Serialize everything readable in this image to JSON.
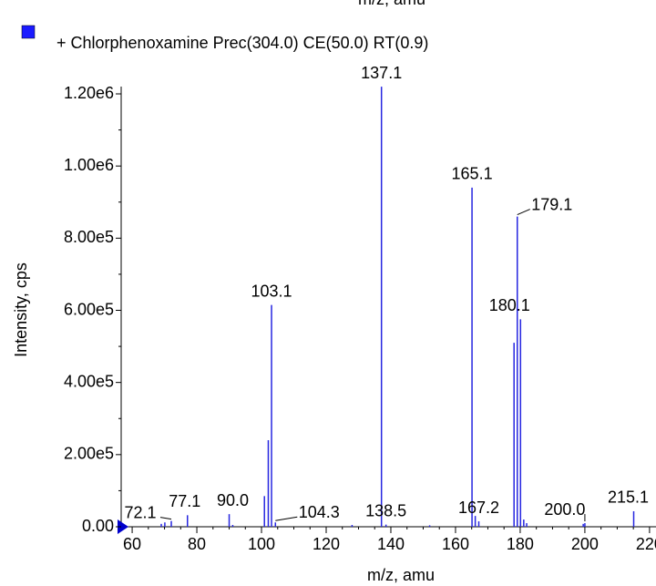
{
  "chart_data": {
    "type": "bar",
    "legend": "+ Chlorphenoxamine Prec(304.0) CE(50.0) RT(0.9)",
    "x_label": "m/z, amu",
    "y_label": "Intensity, cps",
    "color": "#2626e0",
    "x": [
      69.0,
      70.1,
      72.1,
      77.1,
      90.0,
      91.1,
      100.9,
      102.1,
      103.1,
      104.3,
      128.0,
      137.1,
      138.5,
      152.0,
      165.1,
      166.1,
      167.2,
      178.1,
      179.1,
      180.1,
      181.1,
      182.0,
      199.5,
      200.0,
      215.1
    ],
    "values": [
      8000,
      12000,
      16000,
      32000,
      35000,
      5000,
      85000,
      240000,
      615000,
      12000,
      5000,
      1220000,
      6000,
      4000,
      940000,
      30000,
      15000,
      510000,
      860000,
      575000,
      20000,
      10000,
      8000,
      10000,
      43000
    ],
    "peak_labels": [
      null,
      null,
      "72.1",
      "77.1",
      "90.0",
      null,
      null,
      null,
      "103.1",
      "104.3",
      null,
      "137.1",
      "138.5",
      null,
      "165.1",
      null,
      "167.2",
      null,
      "179.1",
      "180.1",
      null,
      null,
      null,
      "200.0",
      "215.1"
    ],
    "xlim": [
      56.6,
      222
    ],
    "xticks": [
      60,
      80,
      100,
      120,
      140,
      160,
      180,
      200,
      220
    ],
    "ylim": [
      0,
      1220000
    ],
    "yticks": [
      {
        "value": 0,
        "label": "0.00"
      },
      {
        "value": 200000,
        "label": "2.00e5"
      },
      {
        "value": 400000,
        "label": "4.00e5"
      },
      {
        "value": 600000,
        "label": "6.00e5"
      },
      {
        "value": 800000,
        "label": "8.00e5"
      },
      {
        "value": 1000000,
        "label": "1.00e6"
      },
      {
        "value": 1200000,
        "label": "1.20e6"
      }
    ]
  }
}
